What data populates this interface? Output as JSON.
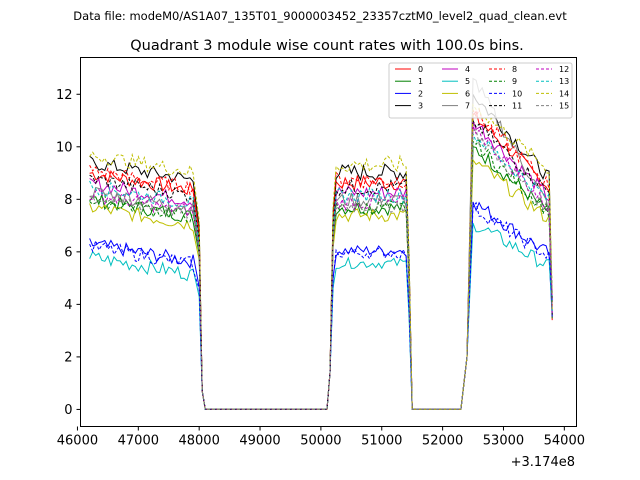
{
  "chart_data": {
    "type": "line",
    "supertitle": "Data file: modeM0/AS1A07_135T01_9000003452_23357cztM0_level2_quad_clean.evt",
    "title": "Quadrant 3 module wise count rates with 100.0s bins.",
    "xlabel": "",
    "ylabel": "",
    "x_offset_label": "+3.174e8",
    "xlim": [
      46050,
      54200
    ],
    "ylim": [
      -0.65,
      13.4
    ],
    "x_ticks": [
      46000,
      47000,
      48000,
      49000,
      50000,
      51000,
      52000,
      53000,
      54000
    ],
    "y_ticks": [
      0,
      2,
      4,
      6,
      8,
      10,
      12
    ],
    "x_tick_labels": [
      "46000",
      "47000",
      "48000",
      "49000",
      "50000",
      "51000",
      "52000",
      "53000",
      "54000"
    ],
    "y_tick_labels": [
      "0",
      "2",
      "4",
      "6",
      "8",
      "10",
      "12"
    ],
    "legend_position": "top-right",
    "legend_columns": 4,
    "zero_segments": [
      [
        48100,
        50100
      ],
      [
        51500,
        52300
      ]
    ],
    "segment1_x": [
      46200,
      48000
    ],
    "segment2_x": [
      50200,
      51500
    ],
    "segment3_x": [
      52300,
      53800
    ],
    "series": [
      {
        "name": "0",
        "color": "#ff0000",
        "dashed": false,
        "level": 9.0,
        "peak": 11.2
      },
      {
        "name": "1",
        "color": "#008000",
        "dashed": false,
        "level": 8.0,
        "peak": 10.0
      },
      {
        "name": "2",
        "color": "#0000ff",
        "dashed": false,
        "level": 6.3,
        "peak": 7.9
      },
      {
        "name": "3",
        "color": "#000000",
        "dashed": false,
        "level": 9.4,
        "peak": 12.0
      },
      {
        "name": "4",
        "color": "#bf00bf",
        "dashed": false,
        "level": 8.6,
        "peak": 11.0
      },
      {
        "name": "5",
        "color": "#00bfbf",
        "dashed": false,
        "level": 5.8,
        "peak": 7.1
      },
      {
        "name": "6",
        "color": "#bfbf00",
        "dashed": false,
        "level": 7.7,
        "peak": 9.5
      },
      {
        "name": "7",
        "color": "#808080",
        "dashed": false,
        "level": 8.3,
        "peak": 12.6
      },
      {
        "name": "8",
        "color": "#ff0000",
        "dashed": true,
        "level": 9.1,
        "peak": 11.4
      },
      {
        "name": "9",
        "color": "#008000",
        "dashed": true,
        "level": 8.0,
        "peak": 10.2
      },
      {
        "name": "10",
        "color": "#0000ff",
        "dashed": true,
        "level": 6.2,
        "peak": 7.7
      },
      {
        "name": "11",
        "color": "#000000",
        "dashed": true,
        "level": 8.8,
        "peak": 11.0
      },
      {
        "name": "12",
        "color": "#bf00bf",
        "dashed": true,
        "level": 8.2,
        "peak": 10.8
      },
      {
        "name": "13",
        "color": "#00bfbf",
        "dashed": true,
        "level": 8.5,
        "peak": 10.5
      },
      {
        "name": "14",
        "color": "#bfbf00",
        "dashed": true,
        "level": 9.7,
        "peak": 11.6
      },
      {
        "name": "15",
        "color": "#808080",
        "dashed": true,
        "level": 8.1,
        "peak": 10.6
      }
    ]
  }
}
